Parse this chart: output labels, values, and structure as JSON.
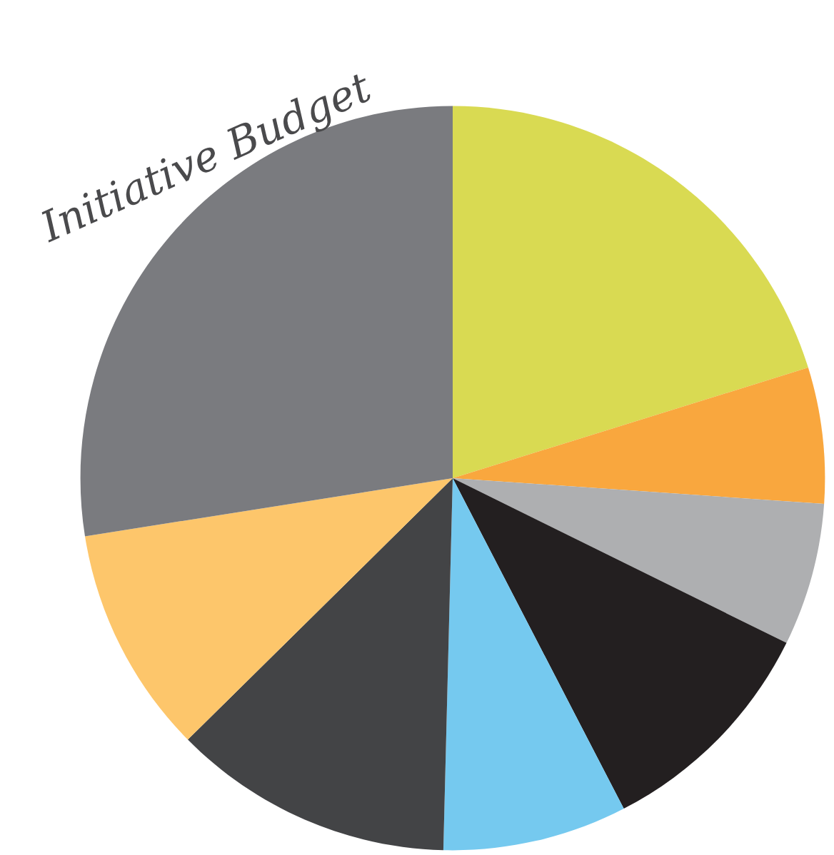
{
  "chart_data": {
    "type": "pie",
    "title": "Initiative Budget",
    "categories": [
      null,
      null,
      null,
      null,
      null,
      null,
      null,
      null
    ],
    "values": [
      20.2,
      5.9,
      6.2,
      10.1,
      8.0,
      12.2,
      9.9,
      27.5
    ],
    "colors": [
      "#d9da52",
      "#f9a73e",
      "#aeafb1",
      "#231f20",
      "#75c9ef",
      "#434446",
      "#fdc66b",
      "#7a7b7f"
    ],
    "legend": false
  }
}
